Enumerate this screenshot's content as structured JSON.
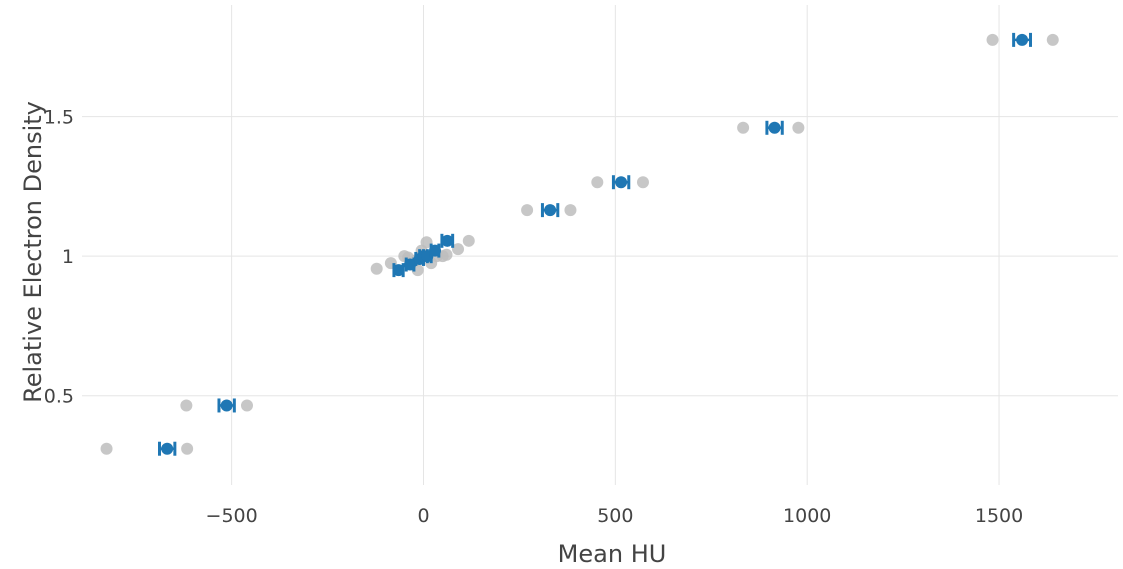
{
  "chart_data": {
    "type": "scatter",
    "title": "",
    "xlabel": "Mean HU",
    "ylabel": "Relative Electron Density",
    "xlim": [
      -890,
      1810
    ],
    "ylim": [
      0.18,
      1.9
    ],
    "xticks": [
      -500,
      0,
      500,
      1000,
      1500
    ],
    "xtick_labels": [
      "−500",
      "0",
      "500",
      "1000",
      "1500"
    ],
    "yticks": [
      0.5,
      1,
      1.5
    ],
    "ytick_labels": [
      "0.5",
      "1",
      "1.5"
    ],
    "grid": true,
    "legend": "none",
    "colors": {
      "mean": "#1f77b4",
      "sample": "#bdbdbd",
      "grid": "#e5e5e5"
    },
    "series": [
      {
        "style": "errorbar",
        "points": [
          {
            "x": -668,
            "y": 0.31,
            "err": 20
          },
          {
            "x": -513,
            "y": 0.465,
            "err": 20
          },
          {
            "x": -65,
            "y": 0.95,
            "err": 12
          },
          {
            "x": -35,
            "y": 0.97,
            "err": 10
          },
          {
            "x": -10,
            "y": 0.99,
            "err": 10
          },
          {
            "x": 0,
            "y": 1.0,
            "err": 10
          },
          {
            "x": 10,
            "y": 1.0,
            "err": 10
          },
          {
            "x": 30,
            "y": 1.02,
            "err": 10
          },
          {
            "x": 62,
            "y": 1.055,
            "err": 14
          },
          {
            "x": 330,
            "y": 1.165,
            "err": 20
          },
          {
            "x": 515,
            "y": 1.265,
            "err": 20
          },
          {
            "x": 915,
            "y": 1.46,
            "err": 20
          },
          {
            "x": 1560,
            "y": 1.775,
            "err": 22
          }
        ]
      },
      {
        "style": "scatter",
        "points": [
          {
            "x": -826,
            "y": 0.31
          },
          {
            "x": -616,
            "y": 0.31
          },
          {
            "x": -618,
            "y": 0.465
          },
          {
            "x": -460,
            "y": 0.465
          },
          {
            "x": -122,
            "y": 0.955
          },
          {
            "x": -85,
            "y": 0.975
          },
          {
            "x": -50,
            "y": 1.0
          },
          {
            "x": -40,
            "y": 0.995
          },
          {
            "x": -20,
            "y": 0.985
          },
          {
            "x": -15,
            "y": 0.95
          },
          {
            "x": -5,
            "y": 1.02
          },
          {
            "x": 8,
            "y": 1.05
          },
          {
            "x": 20,
            "y": 0.975
          },
          {
            "x": 35,
            "y": 1.0
          },
          {
            "x": 50,
            "y": 1.0
          },
          {
            "x": 60,
            "y": 1.005
          },
          {
            "x": 90,
            "y": 1.025
          },
          {
            "x": 118,
            "y": 1.055
          },
          {
            "x": 270,
            "y": 1.165
          },
          {
            "x": 383,
            "y": 1.165
          },
          {
            "x": 453,
            "y": 1.265
          },
          {
            "x": 572,
            "y": 1.265
          },
          {
            "x": 833,
            "y": 1.46
          },
          {
            "x": 977,
            "y": 1.46
          },
          {
            "x": 1483,
            "y": 1.775
          },
          {
            "x": 1640,
            "y": 1.775
          }
        ]
      }
    ]
  }
}
